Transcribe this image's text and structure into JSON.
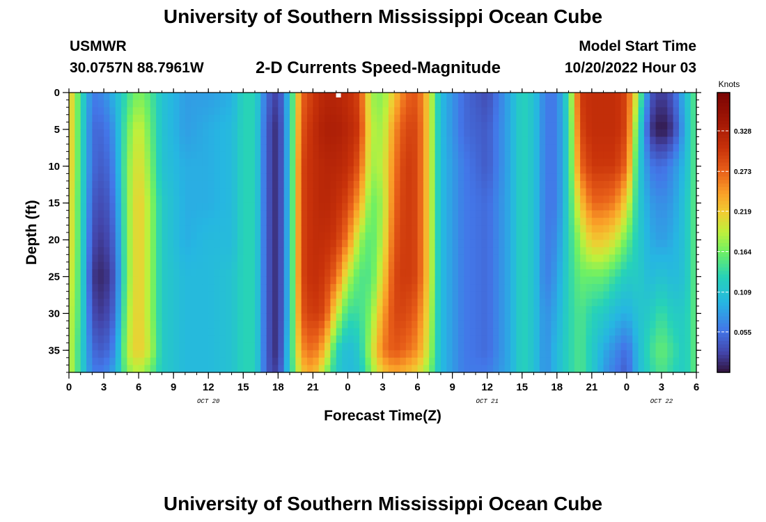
{
  "header": {
    "title": "University of Southern Mississippi Ocean Cube",
    "station": "USMWR",
    "coordinates": "30.0757N  88.7961W",
    "subtitle": "2-D Currents Speed-Magnitude",
    "model_start_label": "Model Start Time",
    "model_start_value": "10/20/2022 Hour 03"
  },
  "footer": {
    "title": "University of Southern Mississippi Ocean Cube"
  },
  "chart_data": {
    "type": "heatmap",
    "title": "2-D Currents Speed-Magnitude",
    "xlabel": "Forecast Time(Z)",
    "ylabel": "Depth (ft)",
    "x_range_hours": [
      0,
      54
    ],
    "x_ticks": [
      {
        "h": 0,
        "label": "0"
      },
      {
        "h": 3,
        "label": "3"
      },
      {
        "h": 6,
        "label": "6"
      },
      {
        "h": 9,
        "label": "9"
      },
      {
        "h": 12,
        "label": "12"
      },
      {
        "h": 15,
        "label": "15"
      },
      {
        "h": 18,
        "label": "18"
      },
      {
        "h": 21,
        "label": "21"
      },
      {
        "h": 24,
        "label": "0"
      },
      {
        "h": 27,
        "label": "3"
      },
      {
        "h": 30,
        "label": "6"
      },
      {
        "h": 33,
        "label": "9"
      },
      {
        "h": 36,
        "label": "12"
      },
      {
        "h": 39,
        "label": "15"
      },
      {
        "h": 42,
        "label": "18"
      },
      {
        "h": 45,
        "label": "21"
      },
      {
        "h": 48,
        "label": "0"
      },
      {
        "h": 51,
        "label": "3"
      },
      {
        "h": 54,
        "label": "6"
      }
    ],
    "date_labels": [
      {
        "h": 12,
        "label": "OCT 20"
      },
      {
        "h": 36,
        "label": "OCT 21"
      },
      {
        "h": 51,
        "label": "OCT 22"
      }
    ],
    "y_range_ft": [
      0,
      38
    ],
    "y_ticks": [
      0,
      5,
      10,
      15,
      20,
      25,
      30,
      35
    ],
    "colorbar": {
      "label": "Knots",
      "range": [
        0,
        0.38
      ],
      "ticks": [
        0.055,
        0.109,
        0.164,
        0.219,
        0.273,
        0.328
      ],
      "tick_labels": [
        "0.055",
        "0.109",
        "0.164",
        "0.219",
        "0.273",
        "0.328"
      ]
    },
    "current_time_marker_hour": 23.2,
    "depths_ft": [
      0,
      5,
      10,
      15,
      20,
      25,
      30,
      35,
      38
    ],
    "columns": [
      {
        "h": 0.0,
        "speeds": [
          0.23,
          0.23,
          0.23,
          0.22,
          0.22,
          0.21,
          0.2,
          0.2,
          0.2
        ]
      },
      {
        "h": 1.0,
        "speeds": [
          0.14,
          0.14,
          0.14,
          0.14,
          0.14,
          0.14,
          0.14,
          0.13,
          0.13
        ]
      },
      {
        "h": 2.0,
        "speeds": [
          0.06,
          0.05,
          0.05,
          0.04,
          0.03,
          0.02,
          0.03,
          0.05,
          0.06
        ]
      },
      {
        "h": 3.0,
        "speeds": [
          0.07,
          0.05,
          0.04,
          0.03,
          0.02,
          0.01,
          0.02,
          0.04,
          0.06
        ]
      },
      {
        "h": 4.0,
        "speeds": [
          0.1,
          0.08,
          0.07,
          0.06,
          0.05,
          0.04,
          0.05,
          0.07,
          0.09
        ]
      },
      {
        "h": 5.0,
        "speeds": [
          0.14,
          0.16,
          0.17,
          0.17,
          0.17,
          0.17,
          0.18,
          0.19,
          0.17
        ]
      },
      {
        "h": 6.0,
        "speeds": [
          0.17,
          0.2,
          0.21,
          0.22,
          0.22,
          0.22,
          0.22,
          0.22,
          0.19
        ]
      },
      {
        "h": 7.0,
        "speeds": [
          0.15,
          0.16,
          0.17,
          0.18,
          0.18,
          0.18,
          0.18,
          0.19,
          0.16
        ]
      },
      {
        "h": 8.0,
        "speeds": [
          0.11,
          0.11,
          0.11,
          0.12,
          0.12,
          0.12,
          0.12,
          0.12,
          0.12
        ]
      },
      {
        "h": 10.0,
        "speeds": [
          0.08,
          0.08,
          0.09,
          0.09,
          0.09,
          0.1,
          0.1,
          0.1,
          0.1
        ]
      },
      {
        "h": 12.0,
        "speeds": [
          0.08,
          0.09,
          0.09,
          0.09,
          0.1,
          0.1,
          0.1,
          0.1,
          0.1
        ]
      },
      {
        "h": 14.0,
        "speeds": [
          0.09,
          0.1,
          0.1,
          0.1,
          0.1,
          0.11,
          0.11,
          0.11,
          0.11
        ]
      },
      {
        "h": 15.0,
        "speeds": [
          0.13,
          0.13,
          0.13,
          0.13,
          0.13,
          0.13,
          0.13,
          0.13,
          0.13
        ]
      },
      {
        "h": 16.0,
        "speeds": [
          0.13,
          0.13,
          0.13,
          0.13,
          0.13,
          0.13,
          0.13,
          0.13,
          0.13
        ]
      },
      {
        "h": 17.0,
        "speeds": [
          0.05,
          0.04,
          0.04,
          0.04,
          0.04,
          0.04,
          0.04,
          0.04,
          0.04
        ]
      },
      {
        "h": 18.0,
        "speeds": [
          0.02,
          0.01,
          0.01,
          0.01,
          0.01,
          0.01,
          0.01,
          0.01,
          0.02
        ]
      },
      {
        "h": 19.0,
        "speeds": [
          0.11,
          0.11,
          0.11,
          0.11,
          0.11,
          0.11,
          0.11,
          0.12,
          0.12
        ]
      },
      {
        "h": 20.0,
        "speeds": [
          0.27,
          0.28,
          0.29,
          0.29,
          0.29,
          0.29,
          0.28,
          0.25,
          0.22
        ]
      },
      {
        "h": 21.0,
        "speeds": [
          0.3,
          0.31,
          0.31,
          0.31,
          0.31,
          0.31,
          0.3,
          0.27,
          0.24
        ]
      },
      {
        "h": 22.0,
        "speeds": [
          0.32,
          0.33,
          0.32,
          0.32,
          0.31,
          0.3,
          0.29,
          0.23,
          0.18
        ]
      },
      {
        "h": 23.0,
        "speeds": [
          0.32,
          0.33,
          0.32,
          0.31,
          0.3,
          0.27,
          0.2,
          0.13,
          0.12
        ]
      },
      {
        "h": 24.0,
        "speeds": [
          0.31,
          0.32,
          0.31,
          0.29,
          0.26,
          0.19,
          0.14,
          0.1,
          0.1
        ]
      },
      {
        "h": 25.0,
        "speeds": [
          0.29,
          0.3,
          0.28,
          0.24,
          0.18,
          0.15,
          0.14,
          0.12,
          0.11
        ]
      },
      {
        "h": 26.0,
        "speeds": [
          0.18,
          0.19,
          0.18,
          0.16,
          0.15,
          0.15,
          0.17,
          0.19,
          0.17
        ]
      },
      {
        "h": 27.0,
        "speeds": [
          0.17,
          0.18,
          0.19,
          0.18,
          0.19,
          0.21,
          0.24,
          0.26,
          0.22
        ]
      },
      {
        "h": 28.0,
        "speeds": [
          0.22,
          0.25,
          0.26,
          0.27,
          0.28,
          0.29,
          0.29,
          0.28,
          0.24
        ]
      },
      {
        "h": 29.0,
        "speeds": [
          0.27,
          0.29,
          0.3,
          0.3,
          0.3,
          0.3,
          0.29,
          0.27,
          0.23
        ]
      },
      {
        "h": 30.0,
        "speeds": [
          0.28,
          0.29,
          0.29,
          0.29,
          0.29,
          0.29,
          0.27,
          0.25,
          0.21
        ]
      },
      {
        "h": 31.0,
        "speeds": [
          0.21,
          0.21,
          0.21,
          0.21,
          0.21,
          0.21,
          0.2,
          0.19,
          0.17
        ]
      },
      {
        "h": 32.0,
        "speeds": [
          0.1,
          0.1,
          0.1,
          0.1,
          0.1,
          0.1,
          0.1,
          0.1,
          0.1
        ]
      },
      {
        "h": 34.0,
        "speeds": [
          0.05,
          0.05,
          0.06,
          0.06,
          0.06,
          0.06,
          0.06,
          0.06,
          0.06
        ]
      },
      {
        "h": 36.0,
        "speeds": [
          0.03,
          0.04,
          0.04,
          0.05,
          0.05,
          0.05,
          0.05,
          0.05,
          0.06
        ]
      },
      {
        "h": 38.0,
        "speeds": [
          0.09,
          0.09,
          0.09,
          0.09,
          0.09,
          0.09,
          0.09,
          0.09,
          0.09
        ]
      },
      {
        "h": 39.0,
        "speeds": [
          0.13,
          0.13,
          0.13,
          0.13,
          0.13,
          0.13,
          0.13,
          0.13,
          0.13
        ]
      },
      {
        "h": 40.0,
        "speeds": [
          0.11,
          0.11,
          0.11,
          0.11,
          0.11,
          0.11,
          0.11,
          0.11,
          0.11
        ]
      },
      {
        "h": 41.0,
        "speeds": [
          0.06,
          0.06,
          0.06,
          0.06,
          0.06,
          0.06,
          0.07,
          0.07,
          0.07
        ]
      },
      {
        "h": 42.0,
        "speeds": [
          0.06,
          0.06,
          0.06,
          0.06,
          0.07,
          0.08,
          0.09,
          0.1,
          0.1
        ]
      },
      {
        "h": 43.0,
        "speeds": [
          0.14,
          0.13,
          0.13,
          0.13,
          0.13,
          0.13,
          0.13,
          0.13,
          0.13
        ]
      },
      {
        "h": 44.0,
        "speeds": [
          0.3,
          0.29,
          0.27,
          0.22,
          0.18,
          0.16,
          0.15,
          0.15,
          0.15
        ]
      },
      {
        "h": 45.0,
        "speeds": [
          0.31,
          0.31,
          0.3,
          0.27,
          0.22,
          0.16,
          0.13,
          0.12,
          0.12
        ]
      },
      {
        "h": 46.0,
        "speeds": [
          0.31,
          0.31,
          0.3,
          0.27,
          0.22,
          0.16,
          0.12,
          0.09,
          0.08
        ]
      },
      {
        "h": 47.0,
        "speeds": [
          0.31,
          0.31,
          0.3,
          0.26,
          0.2,
          0.14,
          0.1,
          0.07,
          0.06
        ]
      },
      {
        "h": 48.0,
        "speeds": [
          0.29,
          0.29,
          0.27,
          0.21,
          0.16,
          0.12,
          0.09,
          0.05,
          0.04
        ]
      },
      {
        "h": 49.0,
        "speeds": [
          0.18,
          0.14,
          0.12,
          0.12,
          0.12,
          0.12,
          0.11,
          0.1,
          0.1
        ]
      },
      {
        "h": 50.0,
        "speeds": [
          0.04,
          0.02,
          0.06,
          0.08,
          0.09,
          0.1,
          0.12,
          0.14,
          0.13
        ]
      },
      {
        "h": 51.0,
        "speeds": [
          0.02,
          0.0,
          0.05,
          0.07,
          0.08,
          0.11,
          0.14,
          0.16,
          0.15
        ]
      },
      {
        "h": 52.0,
        "speeds": [
          0.04,
          0.02,
          0.07,
          0.08,
          0.09,
          0.1,
          0.12,
          0.14,
          0.13
        ]
      },
      {
        "h": 53.0,
        "speeds": [
          0.1,
          0.09,
          0.1,
          0.11,
          0.11,
          0.11,
          0.12,
          0.12,
          0.12
        ]
      },
      {
        "h": 54.0,
        "speeds": [
          0.16,
          0.16,
          0.16,
          0.16,
          0.16,
          0.16,
          0.16,
          0.16,
          0.16
        ]
      }
    ]
  }
}
